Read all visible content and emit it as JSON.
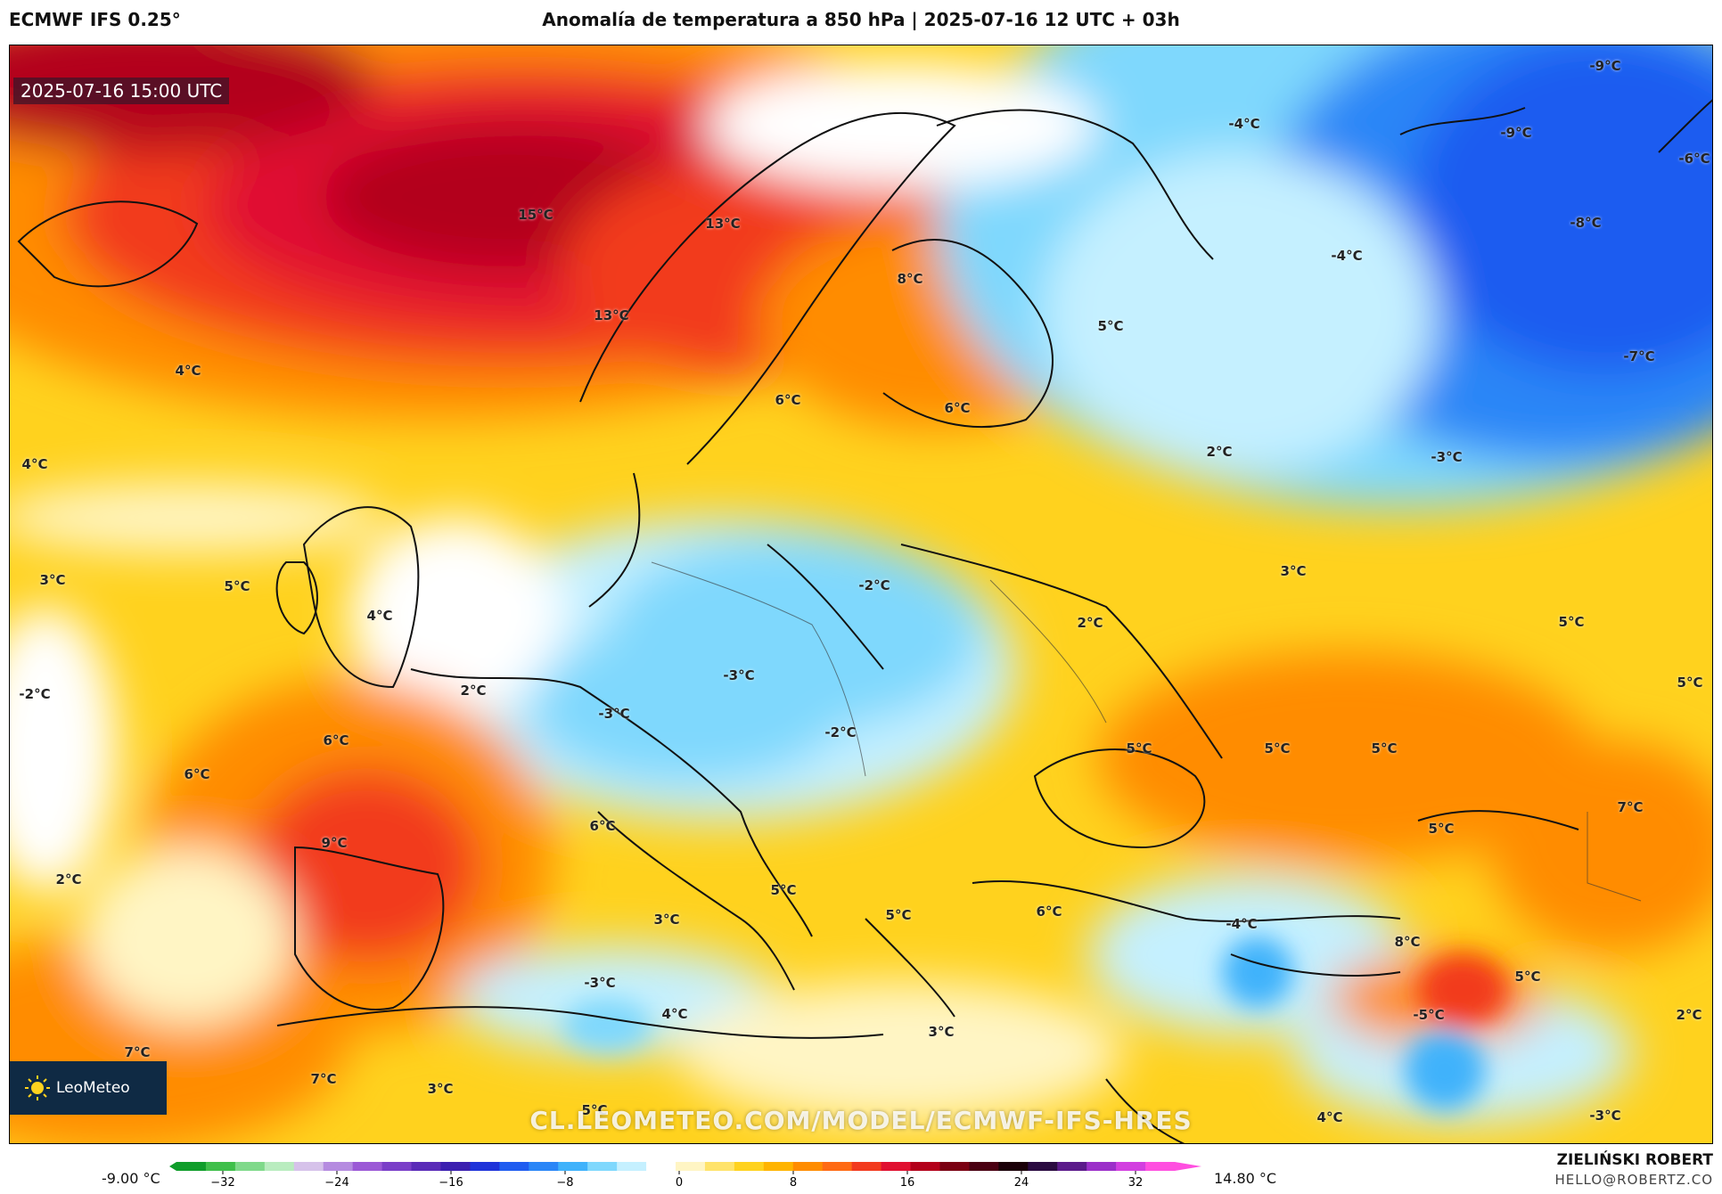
{
  "header": {
    "model": "ECMWF IFS 0.25°",
    "title": "Anomalía de temperatura a 850 hPa | 2025-07-16 12 UTC + 03h"
  },
  "map": {
    "valid_time": "2025-07-16 15:00 UTC",
    "watermark": "CL.LEOMETEO.COM/MODEL/ECMWF-IFS-HRES",
    "logo_text": "LeoMeteo",
    "labels": [
      "15°C",
      "13°C",
      "13°C",
      "8°C",
      "5°C",
      "-4°C",
      "-9°C",
      "-9°C",
      "-6°C",
      "-4°C",
      "-8°C",
      "-7°C",
      "4°C",
      "4°C",
      "6°C",
      "6°C",
      "2°C",
      "-3°C",
      "3°C",
      "5°C",
      "4°C",
      "3°C",
      "-2°C",
      "-2°C",
      "2°C",
      "-3°C",
      "-3°C",
      "-2°C",
      "2°C",
      "5°C",
      "5°C",
      "6°C",
      "6°C",
      "9°C",
      "6°C",
      "2°C",
      "5°C",
      "5°C",
      "5°C",
      "5°C",
      "7°C",
      "5°C",
      "3°C",
      "-3°C",
      "5°C",
      "6°C",
      "-4°C",
      "8°C",
      "5°C",
      "4°C",
      "3°C",
      "7°C",
      "7°C",
      "3°C",
      "5°C",
      "-5°C",
      "2°C",
      "4°C",
      "-3°C"
    ]
  },
  "colorbar": {
    "min_label": "-9.00 °C",
    "max_label": "14.80 °C",
    "ticks": [
      "−32",
      "−24",
      "−16",
      "−8",
      "0",
      "8",
      "16",
      "24",
      "32"
    ],
    "stops": [
      "#0f9d2a",
      "#3fbf4a",
      "#7fd98a",
      "#b9ecbf",
      "#d6c2ea",
      "#b58be0",
      "#9b59d6",
      "#7a3ec8",
      "#5a2bb8",
      "#3b1fb0",
      "#1f33d9",
      "#1f5cf0",
      "#2a86f7",
      "#3fb2fb",
      "#7fd8fd",
      "#c5f0ff",
      "#ffffff",
      "#fff5c4",
      "#ffe36a",
      "#ffd21e",
      "#ffb400",
      "#ff8c00",
      "#ff6a14",
      "#f23a1e",
      "#e01030",
      "#b3001a",
      "#7a0012",
      "#4a0012",
      "#1a0008",
      "#2a0a40",
      "#5b1a8a",
      "#9b2fc9",
      "#d23fe0",
      "#ff4fe0"
    ]
  },
  "author": {
    "name": "ZIELIŃSKI ROBERT",
    "email": "HELLO@ROBERTZ.CO"
  },
  "colors": {
    "frame": "#000000",
    "coast": "#111111"
  }
}
